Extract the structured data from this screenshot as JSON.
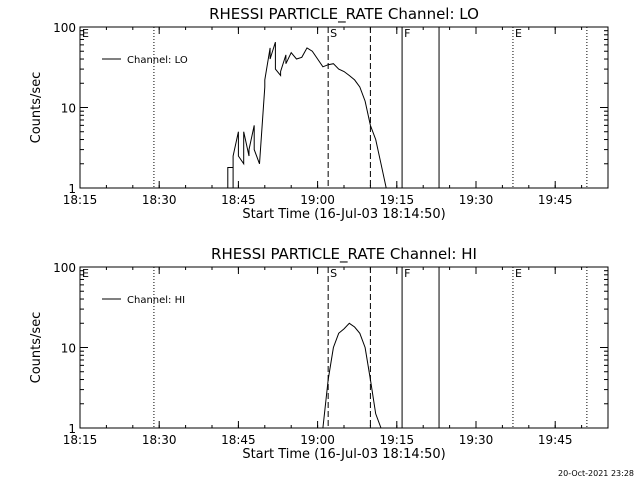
{
  "footer": {
    "timestamp": "20-Oct-2021 23:28"
  },
  "chart_data": [
    {
      "type": "line",
      "title": "RHESSI PARTICLE_RATE Channel: LO",
      "xlabel": "Start Time (16-Jul-03 18:14:50)",
      "ylabel": "Counts/sec",
      "y_scale": "log",
      "ylim": [
        1,
        100
      ],
      "xlim": [
        "18:15",
        "19:55"
      ],
      "x_ticks": [
        "18:15",
        "18:30",
        "18:45",
        "19:00",
        "19:15",
        "19:30",
        "19:45"
      ],
      "y_ticks": [
        "1",
        "10",
        "100"
      ],
      "legend": {
        "entries": [
          "Channel: LO"
        ],
        "placement": "top-left"
      },
      "markers": [
        {
          "label": "E",
          "time": "18:15",
          "style": "none"
        },
        {
          "label": "",
          "time": "18:29",
          "style": "dotted"
        },
        {
          "label": "S",
          "time": "19:02",
          "style": "dashed"
        },
        {
          "label": "",
          "time": "19:10",
          "style": "dashed"
        },
        {
          "label": "F",
          "time": "19:16",
          "style": "solid"
        },
        {
          "label": "",
          "time": "19:23",
          "style": "solid"
        },
        {
          "label": "E",
          "time": "19:37",
          "style": "dotted"
        },
        {
          "label": "",
          "time": "19:51",
          "style": "dotted"
        }
      ],
      "series": [
        {
          "name": "Channel: LO",
          "x": [
            "18:43",
            "18:43",
            "18:44",
            "18:44",
            "18:44",
            "18:45",
            "18:45",
            "18:46",
            "18:46",
            "18:47",
            "18:47",
            "18:48",
            "18:48",
            "18:49",
            "18:49",
            "18:50",
            "18:50",
            "18:51",
            "18:51",
            "18:52",
            "18:52",
            "18:53",
            "18:53",
            "18:54",
            "18:54",
            "18:55",
            "18:56",
            "18:57",
            "18:58",
            "18:59",
            "19:00",
            "19:01",
            "19:02",
            "19:03",
            "19:04",
            "19:05",
            "19:06",
            "19:07",
            "19:08",
            "19:09",
            "19:10",
            "19:11",
            "19:12",
            "19:13"
          ],
          "values": [
            1,
            1.8,
            1.8,
            1,
            2.5,
            5,
            2.5,
            2,
            5,
            2.5,
            3,
            6,
            3,
            2,
            2,
            18,
            22,
            55,
            40,
            65,
            30,
            25,
            28,
            45,
            35,
            48,
            40,
            42,
            55,
            50,
            40,
            32,
            34,
            35,
            30,
            28,
            25,
            22,
            18,
            12,
            6,
            4,
            2,
            1
          ]
        }
      ]
    },
    {
      "type": "line",
      "title": "RHESSI PARTICLE_RATE Channel: HI",
      "xlabel": "Start Time (16-Jul-03 18:14:50)",
      "ylabel": "Counts/sec",
      "y_scale": "log",
      "ylim": [
        1,
        100
      ],
      "xlim": [
        "18:15",
        "19:55"
      ],
      "x_ticks": [
        "18:15",
        "18:30",
        "18:45",
        "19:00",
        "19:15",
        "19:30",
        "19:45"
      ],
      "y_ticks": [
        "1",
        "10",
        "100"
      ],
      "legend": {
        "entries": [
          "Channel: HI"
        ],
        "placement": "top-left"
      },
      "markers": [
        {
          "label": "E",
          "time": "18:15",
          "style": "none"
        },
        {
          "label": "",
          "time": "18:29",
          "style": "dotted"
        },
        {
          "label": "S",
          "time": "19:02",
          "style": "dashed"
        },
        {
          "label": "",
          "time": "19:10",
          "style": "dashed"
        },
        {
          "label": "F",
          "time": "19:16",
          "style": "solid"
        },
        {
          "label": "",
          "time": "19:23",
          "style": "solid"
        },
        {
          "label": "E",
          "time": "19:37",
          "style": "dotted"
        },
        {
          "label": "",
          "time": "19:51",
          "style": "dotted"
        }
      ],
      "series": [
        {
          "name": "Channel: HI",
          "x": [
            "19:01",
            "19:02",
            "19:03",
            "19:04",
            "19:05",
            "19:06",
            "19:07",
            "19:08",
            "19:09",
            "19:10",
            "19:11",
            "19:12"
          ],
          "values": [
            1,
            4,
            10,
            15,
            17,
            20,
            18,
            15,
            10,
            4,
            1.5,
            1
          ]
        }
      ]
    }
  ]
}
